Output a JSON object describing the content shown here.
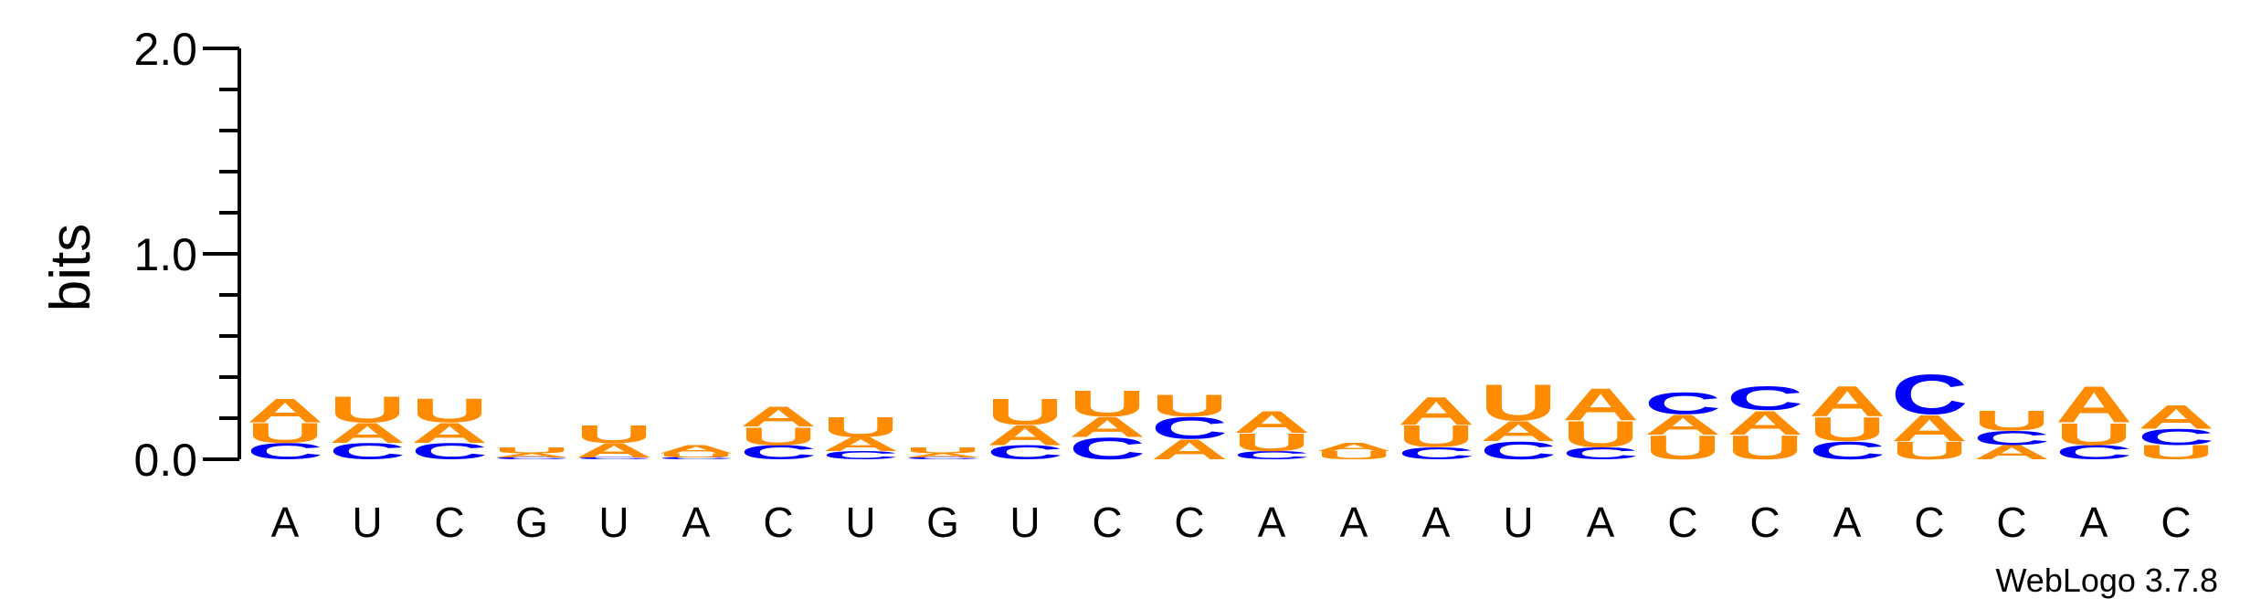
{
  "chart_data": {
    "type": "sequence-logo",
    "ylabel": "bits",
    "ylim": [
      0,
      2
    ],
    "yticks": [
      "0.0",
      "1.0",
      "2.0"
    ],
    "colors": {
      "A": "#ff8c00",
      "U": "#ff8c00",
      "C": "#0000ff",
      "G": "#0000ff"
    },
    "positions": [
      {
        "label": "A",
        "stack": [
          [
            "C",
            0.08
          ],
          [
            "U",
            0.1
          ],
          [
            "A",
            0.12
          ]
        ]
      },
      {
        "label": "U",
        "stack": [
          [
            "C",
            0.08
          ],
          [
            "A",
            0.1
          ],
          [
            "U",
            0.13
          ]
        ]
      },
      {
        "label": "C",
        "stack": [
          [
            "C",
            0.08
          ],
          [
            "A",
            0.1
          ],
          [
            "U",
            0.12
          ]
        ]
      },
      {
        "label": "G",
        "stack": [
          [
            "C",
            0.01
          ],
          [
            "A",
            0.02
          ],
          [
            "U",
            0.03
          ]
        ]
      },
      {
        "label": "U",
        "stack": [
          [
            "C",
            0.01
          ],
          [
            "A",
            0.07
          ],
          [
            "U",
            0.09
          ]
        ]
      },
      {
        "label": "A",
        "stack": [
          [
            "C",
            0.01
          ],
          [
            "U",
            0.02
          ],
          [
            "A",
            0.04
          ]
        ]
      },
      {
        "label": "C",
        "stack": [
          [
            "C",
            0.07
          ],
          [
            "U",
            0.09
          ],
          [
            "A",
            0.1
          ]
        ]
      },
      {
        "label": "U",
        "stack": [
          [
            "C",
            0.04
          ],
          [
            "A",
            0.07
          ],
          [
            "U",
            0.1
          ]
        ]
      },
      {
        "label": "G",
        "stack": [
          [
            "C",
            0.01
          ],
          [
            "A",
            0.02
          ],
          [
            "U",
            0.03
          ]
        ]
      },
      {
        "label": "U",
        "stack": [
          [
            "C",
            0.07
          ],
          [
            "A",
            0.1
          ],
          [
            "U",
            0.13
          ]
        ]
      },
      {
        "label": "C",
        "stack": [
          [
            "C",
            0.11
          ],
          [
            "A",
            0.1
          ],
          [
            "U",
            0.13
          ]
        ]
      },
      {
        "label": "C",
        "stack": [
          [
            "A",
            0.1
          ],
          [
            "C",
            0.11
          ],
          [
            "U",
            0.11
          ]
        ]
      },
      {
        "label": "A",
        "stack": [
          [
            "C",
            0.04
          ],
          [
            "U",
            0.09
          ],
          [
            "A",
            0.11
          ]
        ]
      },
      {
        "label": "A",
        "stack": [
          [
            "U",
            0.04
          ],
          [
            "A",
            0.04
          ]
        ]
      },
      {
        "label": "A",
        "stack": [
          [
            "C",
            0.06
          ],
          [
            "U",
            0.11
          ],
          [
            "A",
            0.14
          ]
        ]
      },
      {
        "label": "U",
        "stack": [
          [
            "C",
            0.09
          ],
          [
            "A",
            0.1
          ],
          [
            "U",
            0.18
          ]
        ]
      },
      {
        "label": "A",
        "stack": [
          [
            "C",
            0.06
          ],
          [
            "U",
            0.13
          ],
          [
            "A",
            0.16
          ]
        ]
      },
      {
        "label": "C",
        "stack": [
          [
            "U",
            0.12
          ],
          [
            "A",
            0.1
          ],
          [
            "C",
            0.11
          ]
        ]
      },
      {
        "label": "C",
        "stack": [
          [
            "U",
            0.12
          ],
          [
            "A",
            0.12
          ],
          [
            "C",
            0.12
          ]
        ]
      },
      {
        "label": "A",
        "stack": [
          [
            "C",
            0.09
          ],
          [
            "U",
            0.12
          ],
          [
            "A",
            0.15
          ]
        ]
      },
      {
        "label": "C",
        "stack": [
          [
            "U",
            0.09
          ],
          [
            "A",
            0.13
          ],
          [
            "C",
            0.2
          ]
        ]
      },
      {
        "label": "C",
        "stack": [
          [
            "A",
            0.07
          ],
          [
            "C",
            0.07
          ],
          [
            "U",
            0.1
          ]
        ]
      },
      {
        "label": "A",
        "stack": [
          [
            "C",
            0.07
          ],
          [
            "U",
            0.11
          ],
          [
            "A",
            0.18
          ]
        ]
      },
      {
        "label": "C",
        "stack": [
          [
            "U",
            0.07
          ],
          [
            "C",
            0.08
          ],
          [
            "A",
            0.12
          ]
        ]
      }
    ]
  },
  "credit": "WebLogo 3.7.8"
}
